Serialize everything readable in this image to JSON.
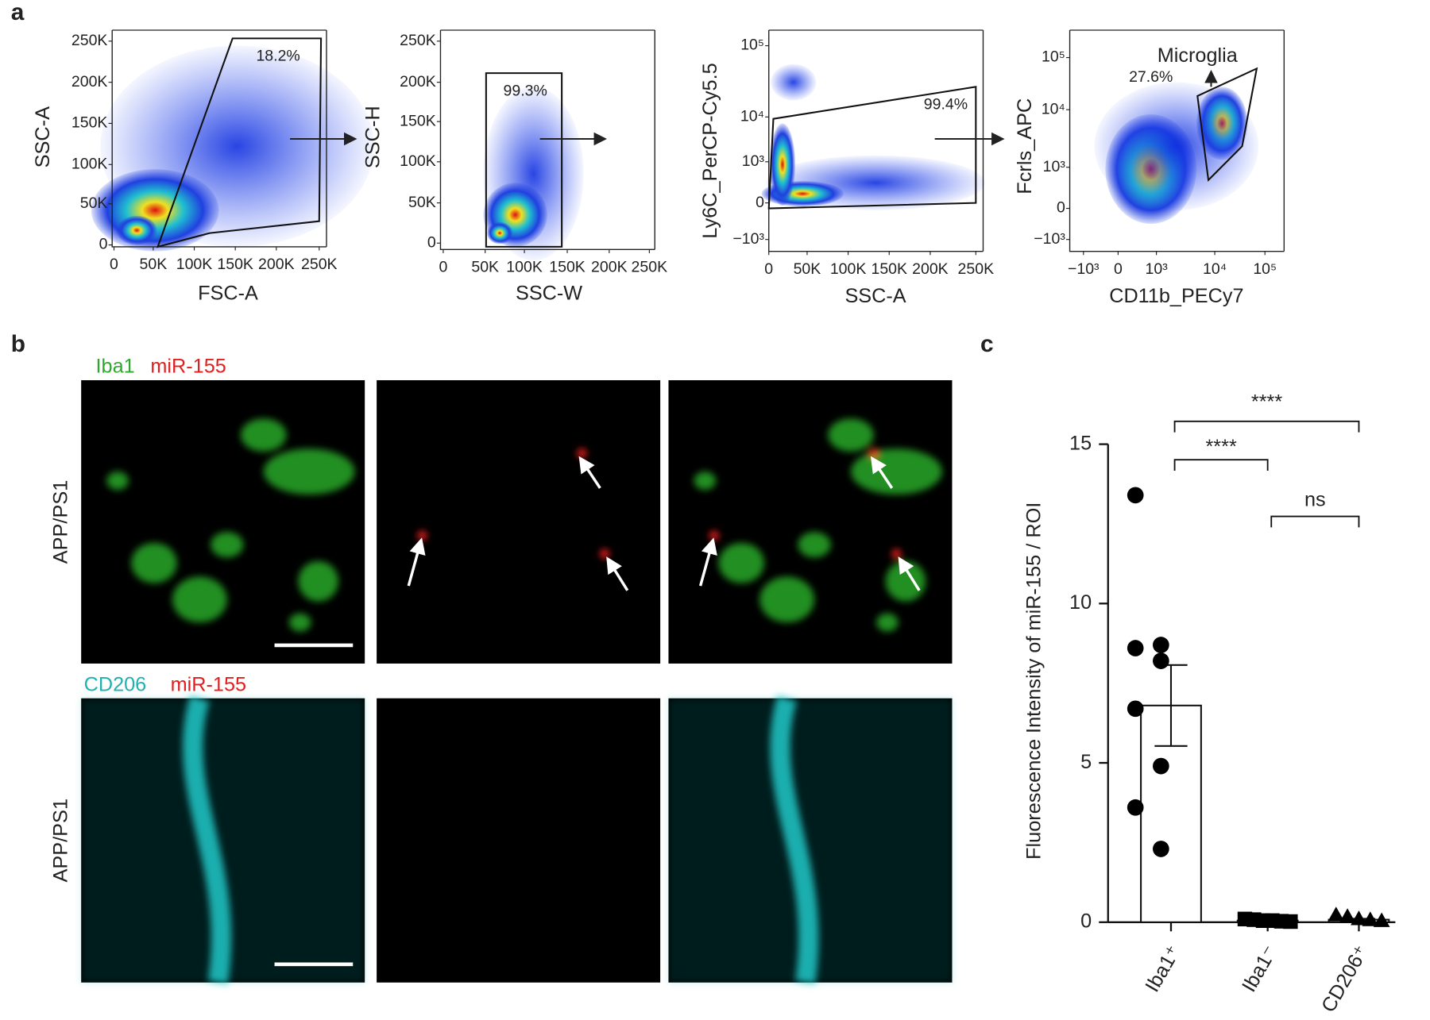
{
  "panel_labels": [
    "a",
    "b",
    "c"
  ],
  "flow_plots": [
    {
      "x_label": "FSC-A",
      "y_label": "SSC-A",
      "x_ticks": [
        "0",
        "50K",
        "100K",
        "150K",
        "200K",
        "250K"
      ],
      "y_ticks": [
        "250K",
        "200K",
        "150K",
        "100K",
        "50K",
        "0"
      ],
      "gate_label": "18.2%"
    },
    {
      "x_label": "SSC-W",
      "y_label": "SSC-H",
      "x_ticks": [
        "0",
        "50K",
        "100K",
        "150K",
        "200K",
        "250K"
      ],
      "y_ticks": [
        "250K",
        "200K",
        "150K",
        "100K",
        "50K",
        "0"
      ],
      "gate_label": "99.3%"
    },
    {
      "x_label": "SSC-A",
      "y_label": "Ly6C_PerCP-Cy5.5",
      "x_ticks": [
        "0",
        "50K",
        "100K",
        "150K",
        "200K",
        "250K"
      ],
      "y_ticks": [
        "10⁵",
        "10⁴",
        "10³",
        "0",
        "−10³"
      ],
      "gate_label": "99.4%"
    },
    {
      "x_label": "CD11b_PECy7",
      "y_label": "Fcrls_APC",
      "x_ticks": [
        "−10³",
        "0",
        "10³",
        "10⁴",
        "10⁵"
      ],
      "y_ticks": [
        "10⁵",
        "10⁴",
        "10³",
        "0",
        "−10³"
      ],
      "gate_label": "27.6%",
      "population": "Microglia"
    }
  ],
  "microscopy": {
    "rows": [
      {
        "stain": "Iba1",
        "probe": "miR-155",
        "label": "APP/PS1"
      },
      {
        "stain": "CD206",
        "probe": "miR-155",
        "label": "APP/PS1"
      }
    ]
  },
  "chart_data": {
    "type": "bar",
    "y_label": "Fluorescence Intensity of miR-155 / ROI",
    "categories": [
      "Iba1⁺",
      "Iba1⁻",
      "CD206⁺"
    ],
    "values": [
      6.8,
      0.05,
      0.08
    ],
    "errors": [
      1.27,
      0.02,
      0.03
    ],
    "points": [
      [
        13.4,
        8.7,
        8.6,
        8.2,
        6.7,
        4.9,
        3.6,
        2.3
      ],
      [
        0.1,
        0.08,
        0.05,
        0.05,
        0.03,
        0.02
      ],
      [
        0.2,
        0.15,
        0.08,
        0.05,
        0.02
      ]
    ],
    "annotations": [
      "****",
      "****",
      "ns"
    ],
    "ylim": [
      0,
      15
    ],
    "yticks": [
      0,
      5,
      10,
      15
    ]
  }
}
